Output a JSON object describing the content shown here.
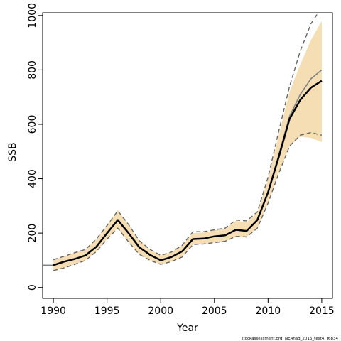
{
  "chart_data": {
    "type": "line",
    "title": "",
    "xlabel": "Year",
    "ylabel": "SSB",
    "xlim": [
      1989,
      2016
    ],
    "ylim": [
      -40,
      1010
    ],
    "x_ticks": [
      1990,
      1995,
      2000,
      2005,
      2010,
      2015
    ],
    "y_ticks": [
      0,
      200,
      400,
      600,
      800,
      1000
    ],
    "grid": false,
    "legend": "none",
    "x": [
      1990,
      1991,
      1992,
      1993,
      1994,
      1995,
      1996,
      1997,
      1998,
      1999,
      2000,
      2001,
      2002,
      2003,
      2004,
      2005,
      2006,
      2007,
      2008,
      2009,
      2010,
      2011,
      2012,
      2013,
      2014,
      2015
    ],
    "series": [
      {
        "name": "",
        "values": [
          82,
          95,
          105,
          118,
          150,
          200,
          248,
          200,
          148,
          120,
          100,
          112,
          133,
          178,
          180,
          188,
          192,
          212,
          208,
          248,
          350,
          480,
          620,
          690,
          735,
          760
        ],
        "color": "#000000",
        "style": "solid"
      },
      {
        "name": "",
        "values": [
          82,
          95,
          105,
          118,
          150,
          200,
          248,
          200,
          148,
          120,
          100,
          112,
          133,
          178,
          180,
          188,
          192,
          212,
          208,
          248,
          352,
          488,
          630,
          710,
          768,
          800
        ],
        "color": "#808080",
        "style": "solid"
      }
    ],
    "band": {
      "lower": [
        62,
        72,
        85,
        100,
        132,
        178,
        218,
        168,
        122,
        100,
        85,
        95,
        112,
        158,
        160,
        165,
        170,
        185,
        186,
        218,
        310,
        420,
        520,
        555,
        550,
        535
      ],
      "upper": [
        102,
        115,
        128,
        140,
        178,
        228,
        285,
        232,
        172,
        140,
        118,
        130,
        155,
        200,
        202,
        210,
        215,
        245,
        240,
        275,
        400,
        560,
        720,
        820,
        910,
        980
      ],
      "color": "#f5deb3"
    },
    "ci_lines": {
      "lower": [
        62,
        72,
        85,
        100,
        132,
        178,
        218,
        168,
        122,
        100,
        85,
        95,
        112,
        158,
        160,
        165,
        170,
        188,
        186,
        218,
        310,
        420,
        520,
        560,
        570,
        560
      ],
      "upper": [
        102,
        115,
        128,
        140,
        178,
        228,
        282,
        232,
        172,
        140,
        118,
        130,
        155,
        205,
        205,
        212,
        218,
        248,
        245,
        278,
        405,
        575,
        740,
        870,
        970,
        1030
      ],
      "color": "#666666",
      "style": "dashed"
    },
    "pre_start_values": [
      82,
      82
    ],
    "footnote": "stockassessment.org, NEAhad_2016_test4, r6834"
  }
}
